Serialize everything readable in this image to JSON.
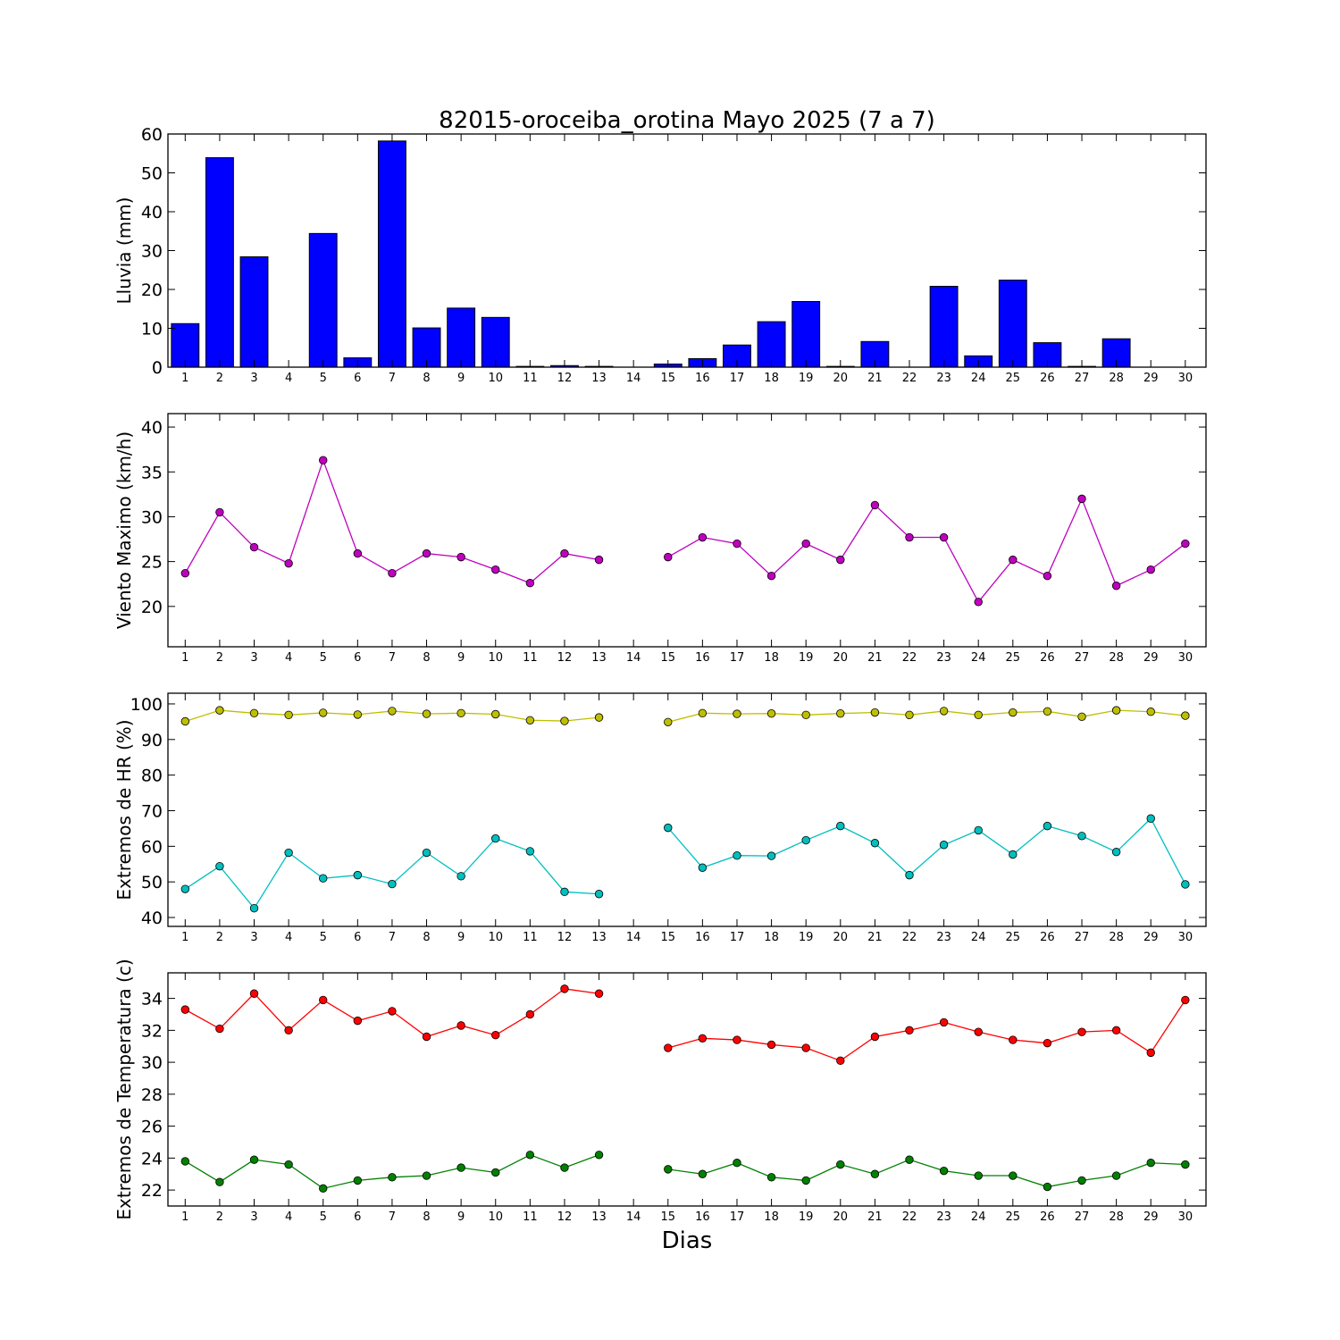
{
  "chart_data": {
    "title": "82015-oroceiba_orotina Mayo 2025  (7 a 7)",
    "xlabel": "Dias",
    "days": [
      1,
      2,
      3,
      4,
      5,
      6,
      7,
      8,
      9,
      10,
      11,
      12,
      13,
      14,
      15,
      16,
      17,
      18,
      19,
      20,
      21,
      22,
      23,
      24,
      25,
      26,
      27,
      28,
      29,
      30
    ],
    "panels": [
      {
        "id": "lluvia",
        "type": "bar",
        "ylabel": "Lluvia (mm)",
        "ylim": [
          0,
          60
        ],
        "yticks": [
          0,
          10,
          20,
          30,
          40,
          50,
          60
        ],
        "series": [
          {
            "color": "#0000ff",
            "values": [
              11.2,
              53.9,
              28.4,
              0,
              34.4,
              2.4,
              58.2,
              10.1,
              15.2,
              12.8,
              0.2,
              0.4,
              0.2,
              0,
              0.8,
              2.2,
              5.7,
              11.7,
              16.9,
              0.2,
              6.6,
              0,
              20.8,
              2.9,
              22.4,
              6.3,
              0.2,
              7.3,
              0,
              0
            ]
          }
        ]
      },
      {
        "id": "viento",
        "type": "line",
        "ylabel": "Viento Maximo (km/h)",
        "ylim": [
          15.5,
          41.5
        ],
        "yticks": [
          20,
          25,
          30,
          35,
          40
        ],
        "series": [
          {
            "color": "#bf00bf",
            "values": [
              23.7,
              30.5,
              26.6,
              24.8,
              36.3,
              25.9,
              23.7,
              25.9,
              25.5,
              24.1,
              22.6,
              25.9,
              25.2,
              null,
              25.5,
              27.7,
              27.0,
              23.4,
              27.0,
              25.2,
              31.3,
              27.7,
              27.7,
              20.5,
              25.2,
              23.4,
              32.0,
              22.3,
              24.1,
              27.0
            ]
          }
        ]
      },
      {
        "id": "humedad",
        "type": "line",
        "ylabel": "Extremos de HR (%)",
        "ylim": [
          37.5,
          103
        ],
        "yticks": [
          40,
          50,
          60,
          70,
          80,
          90,
          100
        ],
        "series": [
          {
            "color": "#bfbf00",
            "values": [
              95.1,
              98.2,
              97.4,
              96.9,
              97.5,
              97.0,
              98.0,
              97.2,
              97.4,
              97.1,
              95.4,
              95.2,
              96.2,
              null,
              94.9,
              97.4,
              97.2,
              97.3,
              96.9,
              97.3,
              97.6,
              96.9,
              98.0,
              96.9,
              97.6,
              97.9,
              96.4,
              98.2,
              97.8,
              96.7
            ]
          },
          {
            "color": "#00bfbf",
            "values": [
              48.0,
              54.4,
              42.6,
              58.2,
              51.0,
              51.9,
              49.4,
              58.2,
              51.6,
              62.2,
              58.6,
              47.2,
              46.6,
              null,
              65.2,
              54.0,
              57.4,
              57.3,
              61.7,
              65.7,
              60.9,
              51.9,
              60.4,
              64.5,
              57.7,
              65.7,
              62.9,
              58.4,
              67.8,
              49.3
            ]
          }
        ]
      },
      {
        "id": "temperatura",
        "type": "line",
        "ylabel": "Extremos de Temperatura (c)",
        "ylim": [
          21.0,
          35.6
        ],
        "yticks": [
          22,
          24,
          26,
          28,
          30,
          32,
          34
        ],
        "series": [
          {
            "color": "#ff0000",
            "values": [
              33.3,
              32.1,
              34.3,
              32.0,
              33.9,
              32.6,
              33.2,
              31.6,
              32.3,
              31.7,
              33.0,
              34.6,
              34.3,
              null,
              30.9,
              31.5,
              31.4,
              31.1,
              30.9,
              30.1,
              31.6,
              32.0,
              32.5,
              31.9,
              31.4,
              31.2,
              31.9,
              32.0,
              30.6,
              33.9
            ]
          },
          {
            "color": "#008000",
            "values": [
              23.8,
              22.5,
              23.9,
              23.6,
              22.1,
              22.6,
              22.8,
              22.9,
              23.4,
              23.1,
              24.2,
              23.4,
              24.2,
              null,
              23.3,
              23.0,
              23.7,
              22.8,
              22.6,
              23.6,
              23.0,
              23.9,
              23.2,
              22.9,
              22.9,
              22.2,
              22.6,
              22.9,
              23.7,
              23.6
            ]
          }
        ]
      }
    ]
  }
}
